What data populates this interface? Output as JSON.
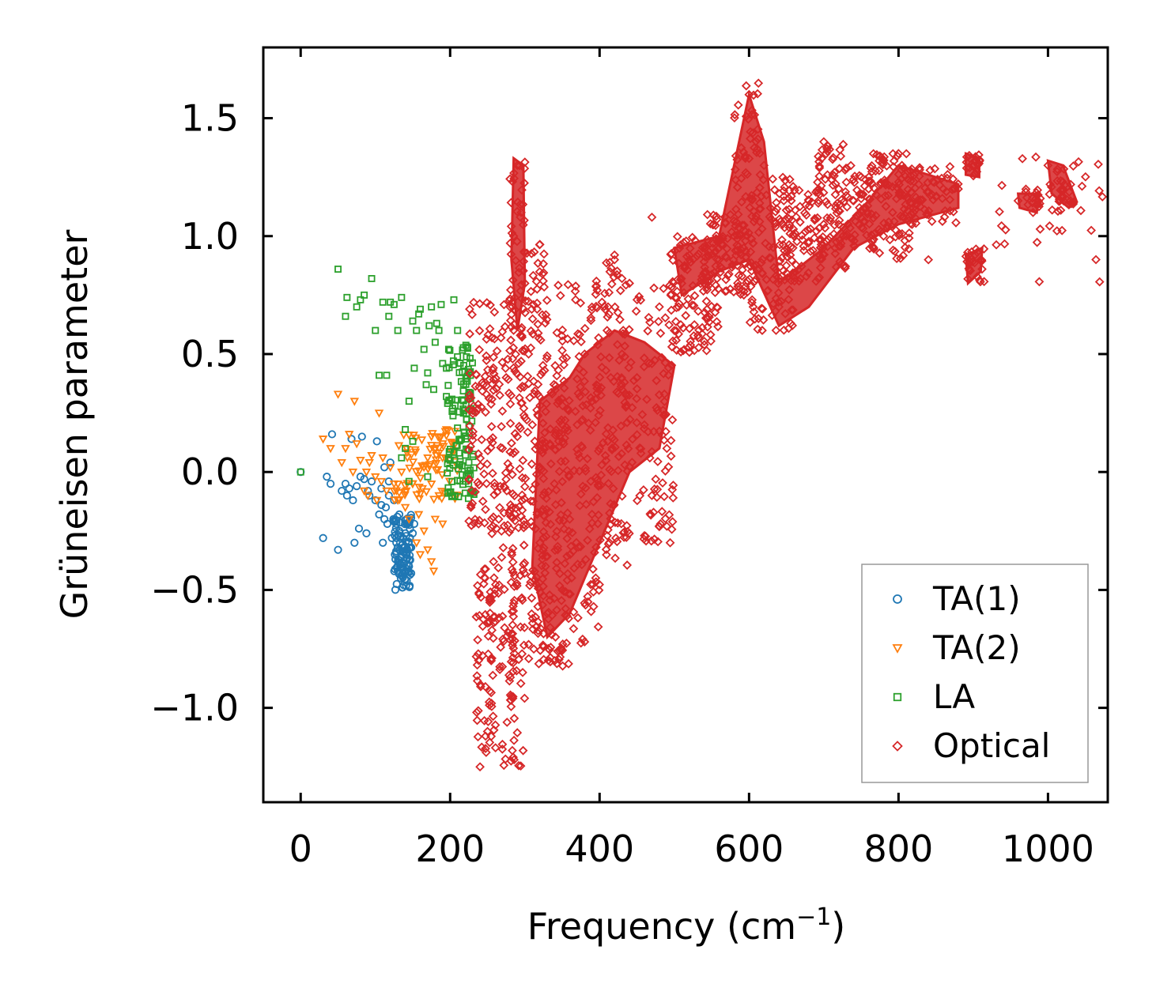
{
  "chart_data": {
    "type": "scatter",
    "title": "",
    "xlabel": "Frequency (cm",
    "xlabel_sup": "−1",
    "xlabel_tail": ")",
    "ylabel": "Grüneisen parameter",
    "xlim": [
      -50,
      1080
    ],
    "ylim": [
      -1.4,
      1.8
    ],
    "xticks": [
      0,
      200,
      400,
      600,
      800,
      1000
    ],
    "xtick_labels": [
      "0",
      "200",
      "400",
      "600",
      "800",
      "1000"
    ],
    "yticks": [
      -1.0,
      -0.5,
      0.0,
      0.5,
      1.0,
      1.5
    ],
    "ytick_labels": [
      "−1.0",
      "−0.5",
      "0.0",
      "0.5",
      "1.0",
      "1.5"
    ],
    "legend_position": "lower-right",
    "series": [
      {
        "name": "TA(1)",
        "marker": "circle",
        "color": "#1f77b4",
        "points": [
          [
            0,
            0
          ],
          [
            30,
            -0.28
          ],
          [
            35,
            -0.02
          ],
          [
            40,
            -0.05
          ],
          [
            42,
            0.16
          ],
          [
            50,
            -0.33
          ],
          [
            55,
            -0.08
          ],
          [
            60,
            -0.05
          ],
          [
            62,
            -0.1
          ],
          [
            65,
            -0.07
          ],
          [
            68,
            0.14
          ],
          [
            70,
            -0.12
          ],
          [
            72,
            -0.3
          ],
          [
            75,
            -0.06
          ],
          [
            78,
            -0.24
          ],
          [
            80,
            -0.02
          ],
          [
            82,
            0.15
          ],
          [
            85,
            -0.03
          ],
          [
            88,
            -0.26
          ],
          [
            90,
            -0.08
          ],
          [
            92,
            -0.1
          ],
          [
            95,
            -0.04
          ],
          [
            100,
            -0.12
          ],
          [
            102,
            0.13
          ],
          [
            105,
            -0.18
          ],
          [
            108,
            -0.07
          ],
          [
            110,
            -0.3
          ],
          [
            112,
            0.02
          ],
          [
            114,
            -0.15
          ],
          [
            116,
            -0.22
          ],
          [
            118,
            -0.1
          ],
          [
            120,
            0.04
          ],
          [
            122,
            -0.28
          ],
          [
            124,
            -0.2
          ],
          [
            126,
            -0.35
          ],
          [
            128,
            -0.3
          ],
          [
            130,
            -0.38
          ],
          [
            132,
            -0.25
          ],
          [
            134,
            -0.45
          ],
          [
            136,
            -0.4
          ],
          [
            138,
            -0.48
          ],
          [
            140,
            -0.42
          ],
          [
            142,
            -0.35
          ],
          [
            144,
            -0.3
          ],
          [
            146,
            -0.28
          ],
          [
            148,
            -0.32
          ],
          [
            150,
            -0.26
          ],
          [
            152,
            -0.22
          ],
          [
            138,
            -0.32
          ],
          [
            132,
            -0.18
          ],
          [
            128,
            -0.22
          ],
          [
            140,
            -0.26
          ],
          [
            134,
            -0.36
          ],
          [
            125,
            -0.12
          ],
          [
            118,
            -0.04
          ],
          [
            112,
            -0.2
          ],
          [
            108,
            -0.14
          ],
          [
            145,
            -0.4
          ],
          [
            142,
            -0.46
          ],
          [
            136,
            -0.49
          ],
          [
            130,
            -0.42
          ],
          [
            126,
            -0.27
          ]
        ],
        "density": [
          [
            125,
            148,
            -0.5,
            -0.18,
            90
          ]
        ]
      },
      {
        "name": "TA(2)",
        "marker": "triangle-down",
        "color": "#ff7f0e",
        "points": [
          [
            30,
            0.14
          ],
          [
            40,
            0.1
          ],
          [
            50,
            0.33
          ],
          [
            55,
            0.04
          ],
          [
            60,
            0.1
          ],
          [
            65,
            0.16
          ],
          [
            70,
            0.0
          ],
          [
            72,
            0.3
          ],
          [
            75,
            0.12
          ],
          [
            80,
            0.05
          ],
          [
            85,
            -0.08
          ],
          [
            88,
            0.0
          ],
          [
            90,
            -0.1
          ],
          [
            92,
            0.04
          ],
          [
            95,
            0.07
          ],
          [
            100,
            -0.02
          ],
          [
            102,
            -0.12
          ],
          [
            105,
            0.25
          ],
          [
            108,
            -0.04
          ],
          [
            110,
            0.06
          ],
          [
            115,
            -0.08
          ],
          [
            120,
            0.02
          ],
          [
            125,
            -0.05
          ],
          [
            130,
            -0.12
          ],
          [
            135,
            0.0
          ],
          [
            140,
            -0.15
          ],
          [
            145,
            -0.2
          ],
          [
            150,
            -0.05
          ],
          [
            155,
            -0.3
          ],
          [
            158,
            -0.18
          ],
          [
            160,
            -0.35
          ],
          [
            165,
            -0.25
          ],
          [
            170,
            -0.33
          ],
          [
            175,
            -0.38
          ],
          [
            178,
            -0.42
          ],
          [
            180,
            -0.2
          ],
          [
            185,
            -0.1
          ],
          [
            190,
            -0.22
          ],
          [
            165,
            0.02
          ],
          [
            170,
            0.06
          ],
          [
            175,
            0.15
          ],
          [
            180,
            0.1
          ],
          [
            185,
            0.08
          ],
          [
            190,
            0.12
          ],
          [
            195,
            0.18
          ],
          [
            200,
            0.05
          ]
        ],
        "density": [
          [
            125,
            210,
            -0.12,
            0.18,
            80
          ]
        ]
      },
      {
        "name": "LA",
        "marker": "square",
        "color": "#2ca02c",
        "points": [
          [
            0,
            0
          ],
          [
            50,
            0.86
          ],
          [
            60,
            0.66
          ],
          [
            62,
            0.74
          ],
          [
            75,
            0.7
          ],
          [
            80,
            0.73
          ],
          [
            85,
            0.75
          ],
          [
            95,
            0.82
          ],
          [
            100,
            0.6
          ],
          [
            105,
            0.41
          ],
          [
            110,
            0.72
          ],
          [
            115,
            0.41
          ],
          [
            118,
            0.66
          ],
          [
            120,
            0.72
          ],
          [
            125,
            0.71
          ],
          [
            130,
            0.6
          ],
          [
            135,
            0.74
          ],
          [
            140,
            0.18
          ],
          [
            145,
            0.3
          ],
          [
            150,
            0.64
          ],
          [
            152,
            0.44
          ],
          [
            155,
            0.6
          ],
          [
            158,
            0.67
          ],
          [
            160,
            0.69
          ],
          [
            165,
            0.52
          ],
          [
            168,
            0.37
          ],
          [
            170,
            0.42
          ],
          [
            172,
            0.62
          ],
          [
            175,
            0.7
          ],
          [
            178,
            0.35
          ],
          [
            180,
            0.55
          ],
          [
            182,
            0.63
          ],
          [
            185,
            0.6
          ],
          [
            188,
            0.71
          ],
          [
            190,
            0.46
          ],
          [
            195,
            0.32
          ],
          [
            198,
            0.52
          ],
          [
            200,
            0.05
          ],
          [
            205,
            0.73
          ],
          [
            210,
            0.6
          ],
          [
            135,
            0.06
          ],
          [
            140,
            0.1
          ],
          [
            150,
            0.13
          ],
          [
            145,
            -0.04
          ],
          [
            170,
            -0.02
          ]
        ],
        "density": [
          [
            195,
            232,
            -0.12,
            0.55,
            120
          ]
        ]
      },
      {
        "name": "Optical",
        "marker": "diamond",
        "color": "#d62728",
        "points": [
          [
            240,
            -1.25
          ],
          [
            250,
            -1.1
          ],
          [
            255,
            -0.8
          ],
          [
            260,
            -0.5
          ],
          [
            265,
            -0.2
          ],
          [
            270,
            0.1
          ],
          [
            275,
            0.4
          ],
          [
            280,
            0.7
          ],
          [
            285,
            1.0
          ],
          [
            290,
            1.3
          ],
          [
            295,
            1.1
          ],
          [
            300,
            0.8
          ],
          [
            305,
            0.5
          ],
          [
            310,
            0.2
          ],
          [
            320,
            -0.3
          ],
          [
            330,
            -0.6
          ],
          [
            340,
            -0.8
          ],
          [
            350,
            -0.5
          ],
          [
            360,
            -0.2
          ],
          [
            370,
            0.2
          ],
          [
            380,
            0.5
          ],
          [
            390,
            0.3
          ],
          [
            400,
            0.1
          ],
          [
            410,
            0.6
          ],
          [
            420,
            0.9
          ],
          [
            430,
            0.5
          ],
          [
            440,
            0.8
          ],
          [
            450,
            0.4
          ],
          [
            460,
            0.2
          ],
          [
            470,
            -0.1
          ],
          [
            480,
            0.7
          ],
          [
            490,
            0.1
          ],
          [
            500,
            0.6
          ],
          [
            510,
            0.8
          ],
          [
            520,
            0.9
          ],
          [
            540,
            0.8
          ],
          [
            560,
            0.9
          ],
          [
            580,
            1.0
          ],
          [
            600,
            1.6
          ],
          [
            620,
            1.3
          ],
          [
            640,
            0.7
          ],
          [
            660,
            1.0
          ],
          [
            680,
            1.15
          ],
          [
            700,
            1.4
          ],
          [
            720,
            1.2
          ],
          [
            740,
            1.15
          ],
          [
            760,
            1.2
          ],
          [
            780,
            1.0
          ],
          [
            800,
            1.35
          ],
          [
            820,
            1.1
          ],
          [
            840,
            0.9
          ],
          [
            860,
            1.2
          ],
          [
            880,
            1.2
          ],
          [
            900,
            1.3
          ],
          [
            910,
            0.9
          ],
          [
            960,
            1.15
          ],
          [
            980,
            1.1
          ],
          [
            1000,
            1.3
          ],
          [
            1020,
            1.2
          ],
          [
            1030,
            1.15
          ],
          [
            720,
            1.05
          ],
          [
            730,
            1.0
          ],
          [
            420,
            0.92
          ],
          [
            470,
            1.08
          ],
          [
            380,
            -0.72
          ],
          [
            460,
            -0.27
          ],
          [
            490,
            -0.23
          ]
        ],
        "density": [
          [
            580,
            615,
            0.8,
            1.65,
            70
          ],
          [
            930,
            1080,
            0.8,
            1.35,
            0
          ],
          [
            225,
            260,
            -0.25,
            0.75,
            90
          ],
          [
            235,
            262,
            -1.2,
            -0.4,
            70
          ],
          [
            255,
            285,
            -1.25,
            0.75,
            90
          ],
          [
            280,
            300,
            -1.25,
            1.33,
            140
          ],
          [
            295,
            330,
            -0.8,
            1.0,
            120
          ],
          [
            310,
            360,
            -0.85,
            0.4,
            120
          ],
          [
            340,
            400,
            -0.8,
            0.8,
            150
          ],
          [
            395,
            440,
            -0.4,
            0.9,
            120
          ],
          [
            430,
            500,
            -0.3,
            0.8,
            110
          ],
          [
            495,
            560,
            0.5,
            1.0,
            110
          ],
          [
            540,
            600,
            0.75,
            1.1,
            90
          ],
          [
            600,
            660,
            0.6,
            1.25,
            110
          ],
          [
            640,
            700,
            0.8,
            1.2,
            80
          ],
          [
            690,
            730,
            0.85,
            1.4,
            70
          ],
          [
            720,
            770,
            0.95,
            1.3,
            70
          ],
          [
            760,
            820,
            0.9,
            1.35,
            80
          ],
          [
            800,
            880,
            1.05,
            1.3,
            80
          ],
          [
            890,
            910,
            1.25,
            1.35,
            20
          ],
          [
            890,
            915,
            0.8,
            0.95,
            25
          ],
          [
            970,
            990,
            1.1,
            1.2,
            15
          ],
          [
            1000,
            1035,
            1.1,
            1.3,
            25
          ]
        ]
      }
    ]
  }
}
